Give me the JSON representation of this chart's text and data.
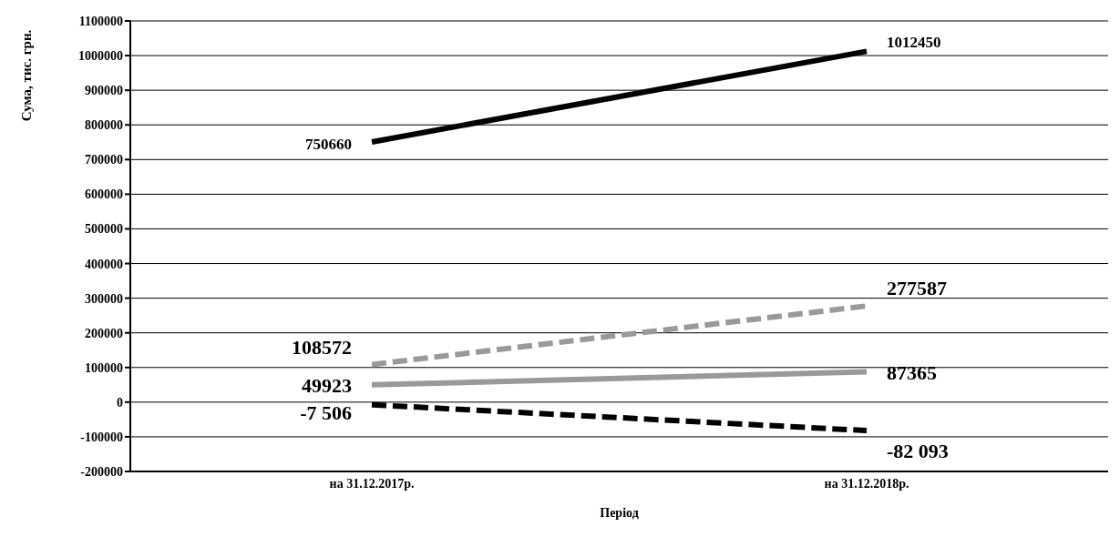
{
  "chart_data": {
    "type": "line",
    "xlabel": "Період",
    "ylabel": "Сума, тис. грн.",
    "categories": [
      "на 31.12.2017р.",
      "на 31.12.2018р."
    ],
    "series": [
      {
        "color": "#000000",
        "line_style": "solid",
        "values": [
          750660,
          1012450
        ],
        "value_labels": [
          "750660",
          "1012450"
        ]
      },
      {
        "color": "#999999",
        "line_style": "dashed",
        "values": [
          108572,
          277587
        ],
        "value_labels": [
          "108572",
          "277587"
        ]
      },
      {
        "color": "#999999",
        "line_style": "solid",
        "values": [
          49923,
          87365
        ],
        "value_labels": [
          "49923",
          "87365"
        ]
      },
      {
        "color": "#000000",
        "line_style": "dashed",
        "values": [
          -7506,
          -82093
        ],
        "value_labels": [
          "-7 506",
          "-82 093"
        ]
      }
    ],
    "ylim": [
      -200000,
      1100000
    ],
    "yticks": [
      -200000,
      -100000,
      0,
      100000,
      200000,
      300000,
      400000,
      500000,
      600000,
      700000,
      800000,
      900000,
      1000000,
      1100000
    ],
    "grid": "y",
    "marker": "none"
  }
}
